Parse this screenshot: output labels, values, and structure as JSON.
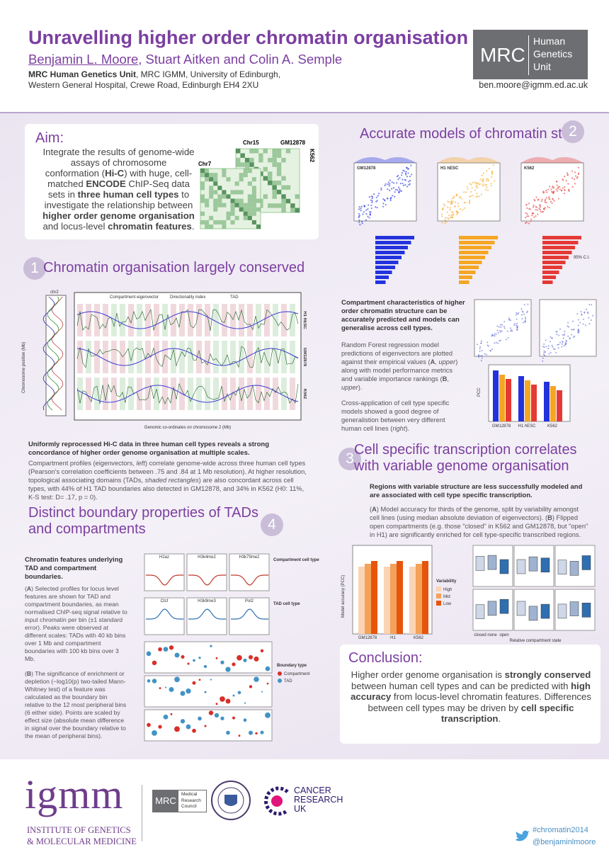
{
  "header": {
    "title": "Unravelling higher order chromatin organisation",
    "authors": [
      {
        "text": "Benjamin L. Moore",
        "underline": true
      },
      {
        "text": ", Stuart Aitken and Colin A. Semple",
        "underline": false
      }
    ],
    "affiliation": [
      {
        "text": "MRC Human Genetics Unit",
        "bold": true
      },
      {
        "text": ", MRC IGMM, University of Edinburgh,",
        "bold": false
      }
    ],
    "address": "Western General Hospital, Crewe Road, Edinburgh EH4 2XU",
    "logo_short": "MRC",
    "logo_lines": [
      "Human",
      "Genetics",
      "Unit"
    ],
    "email": "ben.moore@igmm.ed.ac.uk"
  },
  "aim": {
    "heading": "Aim:",
    "text": [
      {
        "text": "Integrate the results of genome-wide assays of chromosome conformation (",
        "bold": false
      },
      {
        "text": "Hi-C",
        "bold": true
      },
      {
        "text": ") with huge, cell-matched ",
        "bold": false
      },
      {
        "text": "ENCODE",
        "bold": true
      },
      {
        "text": " ChIP-Seq data sets in ",
        "bold": false
      },
      {
        "text": "three human cell types",
        "bold": true
      },
      {
        "text": " to investigate the relationship between ",
        "bold": false
      },
      {
        "text": "higher order genome organisation",
        "bold": true
      },
      {
        "text": " and locus-level ",
        "bold": false
      },
      {
        "text": "chromatin features",
        "bold": true
      },
      {
        "text": ".",
        "bold": false
      }
    ],
    "figure_labels": [
      "Chr15",
      "GM12878",
      "K562",
      "Chr7"
    ]
  },
  "section1": {
    "number": "1",
    "heading": "Chromatin organisation largely conserved",
    "figure": {
      "chrom": "chr2",
      "y_label": "Chromosome position (Mb)",
      "legend": [
        "Compartment eigenvector",
        "Directionality index",
        "TAD"
      ],
      "rows": [
        "H1 hESC",
        "GM12878",
        "K562"
      ],
      "x_label": "Genomic co-ordinates on chromosome 2 (Mb)"
    },
    "caption": "Uniformly reprocessed Hi-C data in three human cell types reveals a strong concordance of  higher order genome organisation at multiple scales.",
    "body": [
      {
        "text": "Compartment profiles (eigenvectors, ",
        "bold": false
      },
      {
        "text": "left",
        "italic": true
      },
      {
        "text": ") correlate genome-wide across three human cell types (Pearson's correlation coefficients between .75 and .84 at 1 Mb resolution). At higher resolution, topological associating domains (TADs, ",
        "bold": false
      },
      {
        "text": "shaded rectangles",
        "italic": true
      },
      {
        "text": ") are also concordant across cell types, with 44% of H1 TAD boundaries also detected in GM12878, and 34% in K562 (H0: 11%, K-S test: D= .17, p = 0).",
        "bold": false
      }
    ]
  },
  "section2": {
    "number": "2",
    "heading": "Accurate models of chromatin state",
    "figure": {
      "panels": [
        "GM12878",
        "H1 hESC",
        "K562"
      ],
      "ci": "95% C.I.",
      "x_label": "Predicted eig",
      "y_label": "PCC",
      "groups": [
        "GM12878",
        "H1 hESC",
        "K562"
      ]
    },
    "caption": "Compartment characteristics of higher order chromatin structure can be accurately predicted and models can generalise across cell types.",
    "body": [
      [
        {
          "text": "Random Forest regression model predictions of eigenvectors are plotted against their empirical values (",
          "bold": false
        },
        {
          "text": "A",
          "bold": true
        },
        {
          "text": ", ",
          "bold": false
        },
        {
          "text": "upper",
          "italic": true
        },
        {
          "text": ") along with model performance metrics and variable importance rankings (",
          "bold": false
        },
        {
          "text": "B",
          "bold": true
        },
        {
          "text": ", ",
          "bold": false
        },
        {
          "text": "upper",
          "italic": true
        },
        {
          "text": ").",
          "bold": false
        }
      ],
      [
        {
          "text": "Cross-application of cell type specific models showed a good degree of generalistion between very different human cell lines (",
          "bold": false
        },
        {
          "text": "right",
          "italic": true
        },
        {
          "text": ").",
          "bold": false
        }
      ]
    ]
  },
  "section3": {
    "number": "3",
    "heading": "Cell specific transcription correlates with variable genome organisation",
    "caption": "Regions with variable structure are less successfully modeled and are associated with cell type specific transcription.",
    "body": [
      {
        "text": "(",
        "bold": false
      },
      {
        "text": "A",
        "bold": true
      },
      {
        "text": ") Model accuracy for thirds of the genome, split by variability amongst cell lines (using median absolute deviation of eigenvectors).  (",
        "bold": false
      },
      {
        "text": "B",
        "bold": true
      },
      {
        "text": ") Flipped open compartments (e.g. those \"closed\" in K562 and GM12878, but \"open\" in H1) are significantly enriched for cell type-specific transcribed regions.",
        "bold": false
      }
    ],
    "figure": {
      "legend_title": "Variability",
      "levels": [
        "High",
        "Mid",
        "Low"
      ],
      "categories": [
        "GM12878",
        "H1",
        "K562"
      ],
      "y_label": "Model accuracy (PCC)",
      "x_label": "Relative compartment state",
      "states": [
        "closed",
        "none",
        "open"
      ]
    }
  },
  "section4": {
    "number": "4",
    "heading": "Distinct boundary properties of TADs and compartments",
    "caption": "Chromatin features underlying TAD and compartment boundaries.",
    "body": [
      [
        {
          "text": "(",
          "bold": false
        },
        {
          "text": "A",
          "bold": true
        },
        {
          "text": ") Selected profiles for locus level features are shown for TAD and compartment boundaries, as mean normalised ChIP-seq signal relative to input chromatin per bin (±1 standard error). Peaks were observed at different scales: TADs with 40 kb bins over 1 Mb and compartment boundaries with 100 kb bins over 3 Mb.",
          "bold": false
        }
      ],
      [
        {
          "text": "(",
          "bold": false
        },
        {
          "text": "B",
          "bold": true
        },
        {
          "text": ") The significance of enrichment or depletion (−log10(p) two-tailed Mann-Whitney test) of a feature was calculated as the boundary bin relative to the 12 most peripheral bins (6 either side). Points are scaled by effect size (absolute mean difference in signal over the boundary relative to the mean of peripheral bins).",
          "bold": false
        }
      ]
    ],
    "figure": {
      "marks": [
        "H2az",
        "H3k4me2",
        "H3k79me2",
        "Ctcf",
        "H3k9me3",
        "Pol2"
      ],
      "legend_a": "Compartment cell type",
      "legend_b": "TAD cell type",
      "legend_c": "Boundary type",
      "types": [
        "Compartment",
        "TAD"
      ]
    }
  },
  "conclusion": {
    "heading": "Conclusion:",
    "text": [
      {
        "text": "Higher order genome organisation is ",
        "bold": false
      },
      {
        "text": "strongly conserved",
        "bold": true
      },
      {
        "text": " between human cell types and can be predicted with ",
        "bold": false
      },
      {
        "text": "high accuracy",
        "bold": true
      },
      {
        "text": " from locus-level chromatin features. Differences between cell types may be driven by ",
        "bold": false
      },
      {
        "text": "cell specific transcription",
        "bold": true
      },
      {
        "text": ".",
        "bold": false
      }
    ]
  },
  "footer": {
    "igmm": "igmm",
    "igmm_lines": [
      "INSTITUTE OF GENETICS",
      "& MOLECULAR MEDICINE"
    ],
    "mrc": "MRC",
    "mrc_lines": [
      "Medical",
      "Research",
      "Council"
    ],
    "cruk_lines": [
      "CANCER",
      "RESEARCH",
      "UK"
    ],
    "twitter": [
      "#chromatin2014",
      "@benjaminlmoore"
    ]
  }
}
